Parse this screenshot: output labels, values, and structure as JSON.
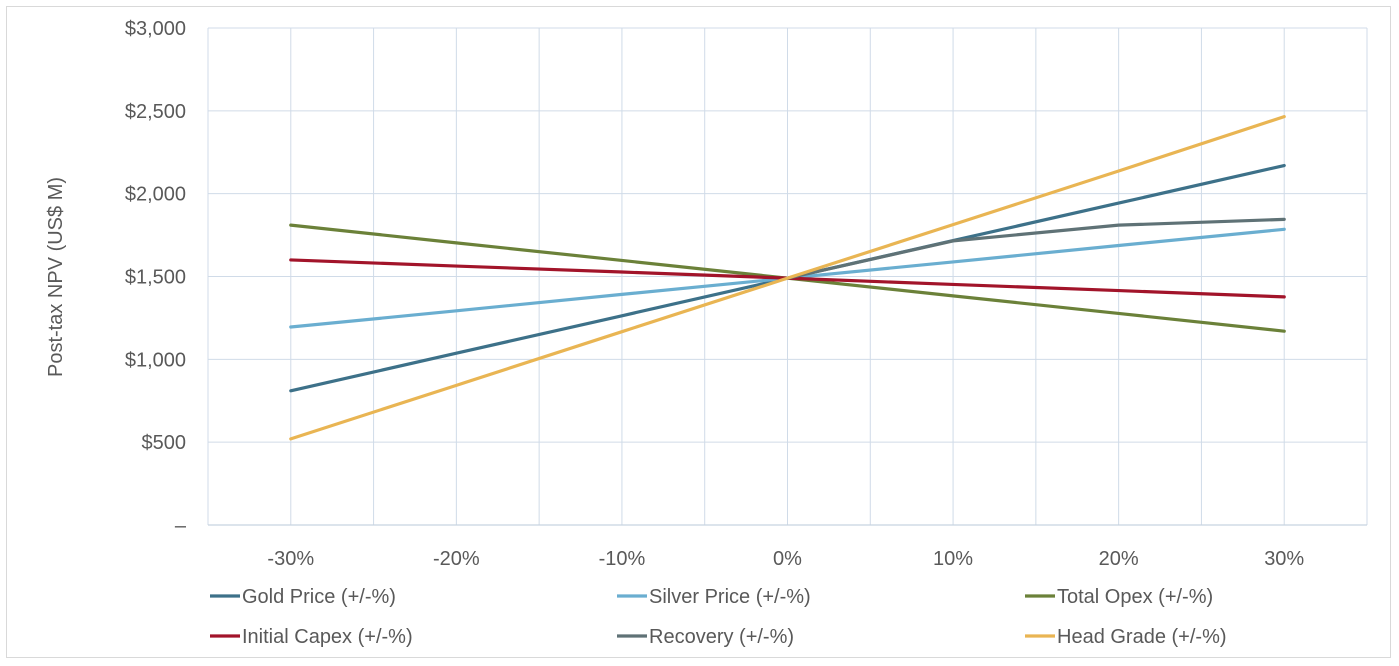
{
  "chart_data": {
    "type": "line",
    "title": "",
    "xlabel": "",
    "ylabel": "Post-tax NPV (US$ M)",
    "x": [
      -30,
      -20,
      -10,
      0,
      10,
      20,
      30
    ],
    "x_tick_labels": [
      "-30%",
      "-20%",
      "-10%",
      "0%",
      "10%",
      "20%",
      "30%"
    ],
    "xlim": [
      -35,
      35
    ],
    "ylim": [
      0,
      3000
    ],
    "y_ticks": [
      0,
      500,
      1000,
      1500,
      2000,
      2500,
      3000
    ],
    "y_tick_labels": [
      "–",
      "$500",
      "$1,000",
      "$1,500",
      "$2,000",
      "$2,500",
      "$3,000"
    ],
    "grid": true,
    "legend_position": "bottom",
    "series": [
      {
        "name": "Gold Price (+/-%)",
        "color": "#3d7189",
        "values": [
          810,
          1037,
          1263,
          1490,
          1717,
          1943,
          2170
        ]
      },
      {
        "name": "Silver Price (+/-%)",
        "color": "#6aaed0",
        "values": [
          1195,
          1293,
          1392,
          1490,
          1588,
          1687,
          1785
        ]
      },
      {
        "name": "Total Opex (+/-%)",
        "color": "#6b8139",
        "values": [
          1810,
          1703,
          1597,
          1490,
          1383,
          1277,
          1170
        ]
      },
      {
        "name": "Initial Capex (+/-%)",
        "color": "#a2142a",
        "values": [
          1600,
          1563,
          1527,
          1490,
          1452,
          1415,
          1377
        ]
      },
      {
        "name": "Recovery (+/-%)",
        "color": "#5f7276",
        "values": [
          null,
          null,
          null,
          1490,
          1715,
          1810,
          1845
        ]
      },
      {
        "name": "Head Grade (+/-%)",
        "color": "#e9b553",
        "values": [
          520,
          843,
          1167,
          1490,
          1813,
          2137,
          2465
        ]
      }
    ]
  }
}
